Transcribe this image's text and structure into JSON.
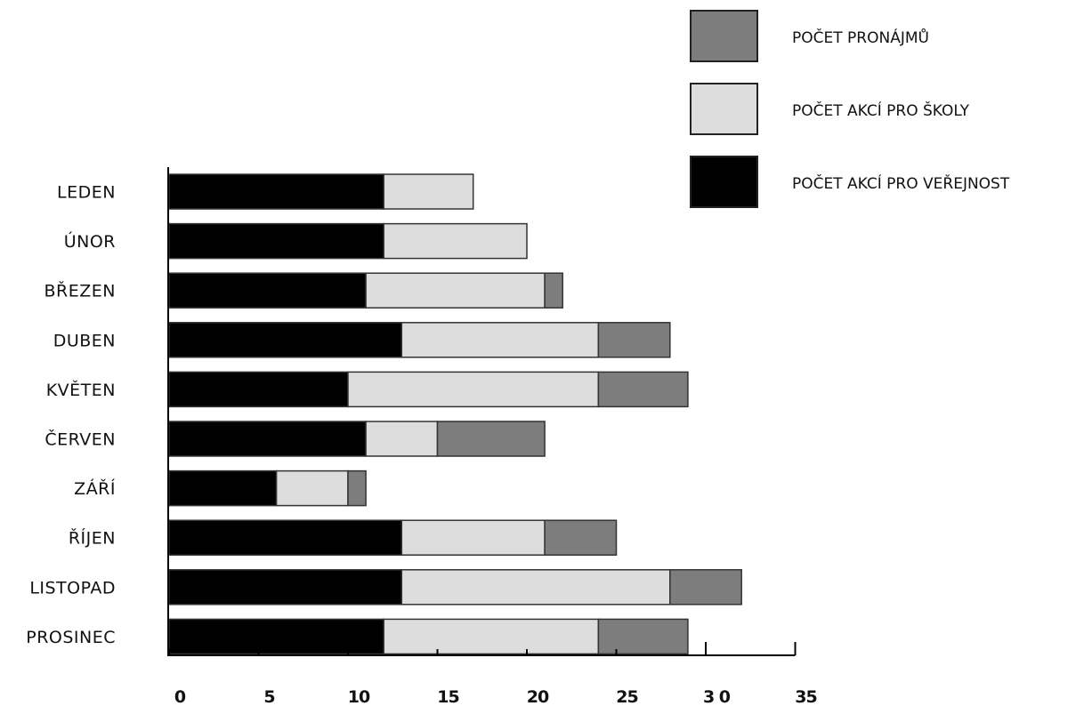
{
  "chart_data": {
    "type": "bar",
    "orientation": "horizontal",
    "stacked": true,
    "categories": [
      "LEDEN",
      "ÚNOR",
      "BŘEZEN",
      "DUBEN",
      "KVĚTEN",
      "ČERVEN",
      "ZÁŘÍ",
      "ŘÍJEN",
      "LISTOPAD",
      "PROSINEC"
    ],
    "series": [
      {
        "name": "POČET AKCÍ PRO VEŘEJNOST",
        "color": "#000000",
        "values": [
          12,
          12,
          11,
          13,
          10,
          11,
          6,
          13,
          13,
          12
        ]
      },
      {
        "name": "POČET AKCÍ PRO ŠKOLY",
        "color": "#dddddd",
        "values": [
          5,
          8,
          10,
          11,
          14,
          4,
          4,
          8,
          15,
          12
        ]
      },
      {
        "name": "POČET  PRONÁJMŮ",
        "color": "#7d7d7d",
        "values": [
          0,
          0,
          1,
          4,
          5,
          6,
          1,
          4,
          4,
          5
        ]
      }
    ],
    "xlim": [
      0,
      35
    ],
    "xticks": [
      "0",
      "5",
      "10",
      "15",
      "20",
      "25",
      "3 0",
      "35"
    ],
    "grid": false,
    "legend_position": "top-right"
  }
}
